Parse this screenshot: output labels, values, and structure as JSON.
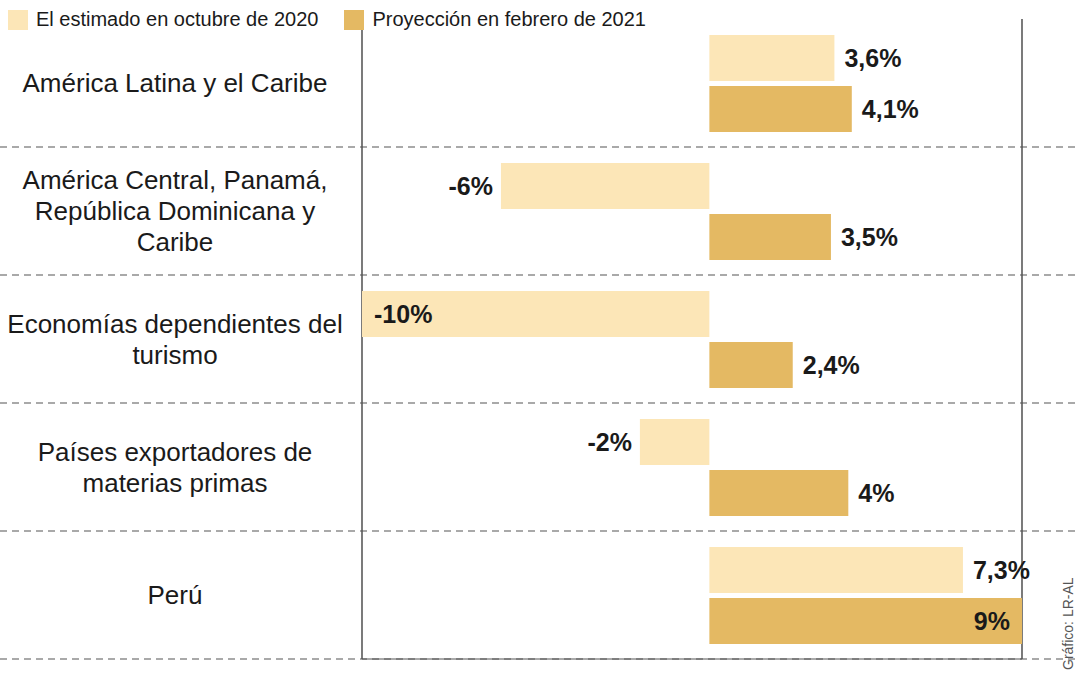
{
  "chart_data": {
    "type": "bar",
    "orientation": "horizontal",
    "categories": [
      "América Latina y el Caribe",
      "América Central, Panamá, República Dominicana y Caribe",
      "Economías dependientes del turismo",
      "Países exportadores de materias primas",
      "Perú"
    ],
    "series": [
      {
        "name": "El estimado en octubre de 2020",
        "color": "#fce6b7",
        "values": [
          3.6,
          -6,
          -10,
          -2,
          7.3
        ],
        "value_labels": [
          "3,6%",
          "-6%",
          "-10%",
          "-2%",
          "7,3%"
        ]
      },
      {
        "name": "Proyección en febrero de 2021",
        "color": "#e4b963",
        "values": [
          4.1,
          3.5,
          2.4,
          4,
          9
        ],
        "value_labels": [
          "4,1%",
          "3,5%",
          "2,4%",
          "4%",
          "9%"
        ]
      }
    ],
    "xlim": [
      -10,
      9
    ],
    "xticks": [
      0
    ],
    "grid": true,
    "legend": "top",
    "data_labels": true,
    "tick_labels": "y",
    "annotations": [
      "Gráfico: LR-AL"
    ]
  }
}
